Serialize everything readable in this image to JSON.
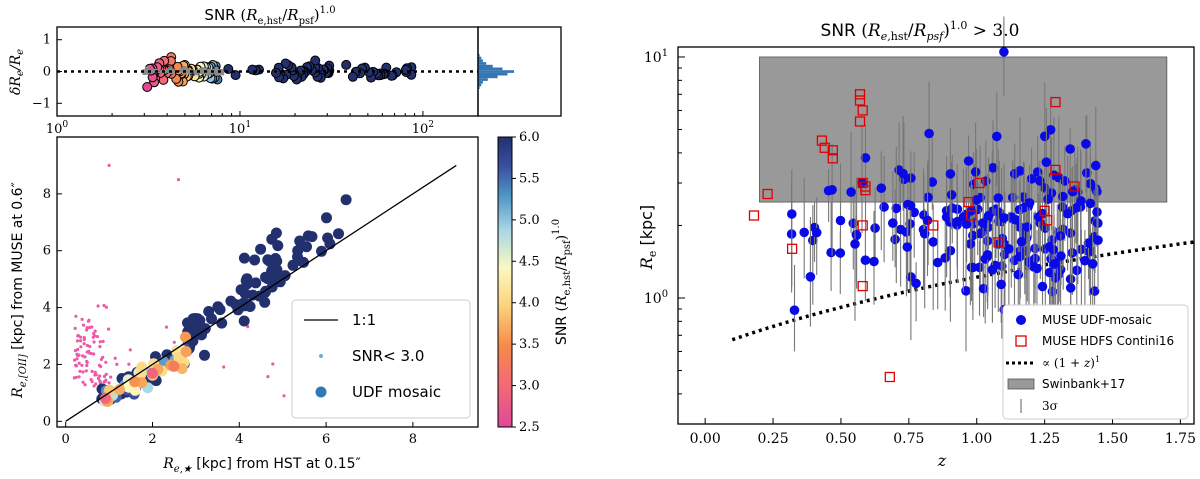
{
  "chart_data": [
    {
      "id": "residual",
      "type": "scatter",
      "title_prefix": "SNR ",
      "title_math": "(R_e,hst / R_psf)^1.0",
      "ylabel": "δR_e / R_e",
      "xscale": "log",
      "xlim": [
        1,
        200
      ],
      "ylim": [
        -1.4,
        1.4
      ],
      "x_ticks": [
        {
          "value": 1,
          "label": "10^0"
        },
        {
          "value": 10,
          "label": "10^1"
        },
        {
          "value": 100,
          "label": "10^2"
        }
      ],
      "y_ticks": [
        -1,
        0,
        1
      ],
      "reference_line_y": 0,
      "marginal_hist": [
        1,
        2,
        3,
        6,
        12,
        18,
        22,
        15,
        9,
        5,
        3,
        2,
        1
      ],
      "colorbar": {
        "min": 2.5,
        "max": 6.0,
        "ticks": [
          2.5,
          3.0,
          3.5,
          4.0,
          4.5,
          5.0,
          5.5,
          6.0
        ],
        "label_prefix": "SNR ",
        "label_math": "(R_e,hst/R_psf)^1.0"
      }
    },
    {
      "id": "size-comparison",
      "type": "scatter",
      "xlabel_prefix": "R_e,★",
      "xlabel_suffix": " [kpc] from HST at 0.15″",
      "ylabel_prefix": "R_e,[OII]",
      "ylabel_suffix": " [kpc] from MUSE at 0.6″",
      "xlim": [
        -0.2,
        9.5
      ],
      "ylim": [
        -0.2,
        10
      ],
      "x_ticks": [
        0,
        2,
        4,
        6,
        8
      ],
      "y_ticks": [
        0,
        2,
        4,
        6,
        8
      ],
      "legend": {
        "position": "lower-right",
        "entries": [
          "1:1",
          "SNR< 3.0",
          "UDF mosaic"
        ]
      },
      "colorbar_ticks": [
        "2.5",
        "3.0",
        "3.5",
        "4.0",
        "4.5",
        "5.0",
        "5.5",
        "6.0"
      ],
      "colorbar_label": "SNR (R_e,hst/R_psf)^1.0"
    },
    {
      "id": "size-redshift",
      "type": "scatter",
      "title": "SNR (R_e,hst/R_psf)^1.0 > 3.0",
      "xlabel": "z",
      "ylabel": "R_e [kpc]",
      "yscale": "log",
      "xlim": [
        -0.1,
        1.8
      ],
      "ylim": [
        0.3,
        11
      ],
      "x_ticks": [
        "0.00",
        "0.25",
        "0.50",
        "0.75",
        "1.00",
        "1.25",
        "1.50",
        "1.75"
      ],
      "y_ticks": [
        {
          "value": 1,
          "label": "10^0"
        },
        {
          "value": 10,
          "label": "10^1"
        }
      ],
      "shaded_region": {
        "x": [
          0.2,
          1.7
        ],
        "y": [
          2.5,
          10
        ],
        "label": "Swinbank+17"
      },
      "trend_line": {
        "label": "∝ (1 + z)^1",
        "coefficient": 0.5,
        "exponent": 1,
        "x_range": [
          0.1,
          1.8
        ]
      },
      "series_labels": [
        "MUSE UDF-mosaic",
        "MUSE HDFS Contini16"
      ],
      "errorbar_label": "3σ",
      "hdfs_points": [
        {
          "z": 0.18,
          "re": 2.2
        },
        {
          "z": 0.23,
          "re": 2.7
        },
        {
          "z": 0.32,
          "re": 1.6
        },
        {
          "z": 0.43,
          "re": 4.5
        },
        {
          "z": 0.44,
          "re": 4.2
        },
        {
          "z": 0.47,
          "re": 4.1
        },
        {
          "z": 0.47,
          "re": 3.8
        },
        {
          "z": 0.57,
          "re": 7.0
        },
        {
          "z": 0.57,
          "re": 6.6
        },
        {
          "z": 0.58,
          "re": 6.0
        },
        {
          "z": 0.57,
          "re": 5.4
        },
        {
          "z": 0.58,
          "re": 3.0
        },
        {
          "z": 0.59,
          "re": 2.9
        },
        {
          "z": 0.59,
          "re": 2.8
        },
        {
          "z": 0.58,
          "re": 2.0
        },
        {
          "z": 0.58,
          "re": 1.12
        },
        {
          "z": 0.68,
          "re": 0.47
        },
        {
          "z": 0.84,
          "re": 2.0
        },
        {
          "z": 0.97,
          "re": 2.5
        },
        {
          "z": 0.98,
          "re": 2.2
        },
        {
          "z": 1.01,
          "re": 3.0
        },
        {
          "z": 1.08,
          "re": 1.7
        },
        {
          "z": 1.25,
          "re": 2.3
        },
        {
          "z": 1.26,
          "re": 2.1
        },
        {
          "z": 1.29,
          "re": 6.5
        },
        {
          "z": 1.29,
          "re": 3.4
        },
        {
          "z": 1.36,
          "re": 2.9
        }
      ]
    }
  ]
}
